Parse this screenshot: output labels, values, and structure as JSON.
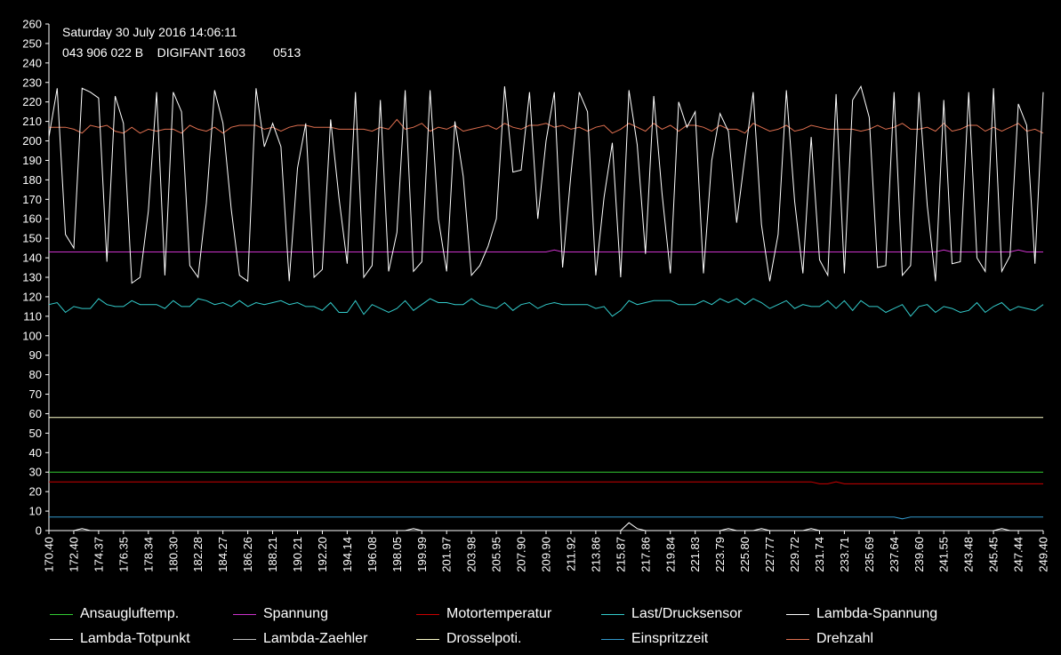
{
  "header": {
    "line1": "Saturday 30 July 2016 14:06:11",
    "line2": "043 906 022 B    DIGIFANT 1603        0513"
  },
  "chart_data": {
    "type": "line",
    "title": "",
    "ylim": [
      0,
      260
    ],
    "yticks": [
      0,
      10,
      20,
      30,
      40,
      50,
      60,
      70,
      80,
      90,
      100,
      110,
      120,
      130,
      140,
      150,
      160,
      170,
      180,
      190,
      200,
      210,
      220,
      230,
      240,
      250,
      260
    ],
    "xticks": [
      "170.40",
      "172.40",
      "174.37",
      "176.35",
      "178.34",
      "180.30",
      "182.28",
      "184.27",
      "186.26",
      "188.21",
      "190.21",
      "192.20",
      "194.14",
      "196.08",
      "198.05",
      "199.99",
      "201.97",
      "203.98",
      "205.95",
      "207.90",
      "209.90",
      "211.92",
      "213.86",
      "215.87",
      "217.86",
      "219.84",
      "221.83",
      "223.79",
      "225.80",
      "227.77",
      "229.72",
      "231.74",
      "233.71",
      "235.69",
      "237.64",
      "239.60",
      "241.55",
      "243.48",
      "245.45",
      "247.44",
      "249.40"
    ],
    "grid": false,
    "legend_position": "bottom",
    "n_points": 121,
    "series": [
      {
        "name": "Ansaugluftemp.",
        "color": "#33cc33",
        "constant": 30
      },
      {
        "name": "Spannung",
        "color": "#cc33cc",
        "constant": 143,
        "bumps": [
          [
            61,
            144
          ],
          [
            108,
            144
          ],
          [
            117,
            144
          ]
        ]
      },
      {
        "name": "Motortemperatur",
        "color": "#cc0000",
        "constant": 25,
        "from": [
          [
            92,
            25
          ],
          [
            93,
            24
          ],
          [
            94,
            24
          ],
          [
            95,
            25
          ],
          [
            96,
            24
          ]
        ],
        "after": 24,
        "after_index": 96
      },
      {
        "name": "Last/Drucksensor",
        "color": "#33cccc",
        "values": [
          116,
          117,
          112,
          115,
          114,
          114,
          119,
          116,
          115,
          115,
          118,
          116,
          116,
          116,
          114,
          118,
          115,
          115,
          119,
          118,
          116,
          117,
          115,
          118,
          115,
          117,
          116,
          117,
          118,
          116,
          117,
          115,
          115,
          113,
          117,
          112,
          112,
          118,
          111,
          116,
          114,
          112,
          114,
          118,
          113,
          116,
          119,
          117,
          117,
          116,
          116,
          119,
          116,
          115,
          114,
          117,
          113,
          116,
          117,
          114,
          116,
          117,
          116,
          116,
          116,
          116,
          114,
          115,
          110,
          113,
          118,
          116,
          117,
          118,
          118,
          118,
          116,
          116,
          116,
          118,
          116,
          119,
          117,
          119,
          116,
          119,
          117,
          114,
          116,
          118,
          114,
          116,
          115,
          115,
          118,
          114,
          118,
          113,
          118,
          115,
          115,
          112,
          114,
          116,
          110,
          115,
          116,
          112,
          115,
          114,
          112,
          113,
          117,
          112,
          115,
          117,
          113,
          115,
          114,
          113,
          116
        ]
      },
      {
        "name": "Lambda-Spannung",
        "color": "#ffffff",
        "values": [
          202,
          227,
          152,
          145,
          227,
          225,
          222,
          138,
          223,
          209,
          127,
          130,
          164,
          225,
          131,
          225,
          215,
          136,
          130,
          168,
          226,
          209,
          165,
          131,
          128,
          227,
          197,
          209,
          197,
          128,
          186,
          209,
          130,
          134,
          211,
          171,
          137,
          225,
          130,
          136,
          221,
          133,
          153,
          226,
          133,
          138,
          226,
          160,
          133,
          210,
          182,
          131,
          136,
          146,
          160,
          228,
          184,
          185,
          225,
          160,
          200,
          225,
          135,
          183,
          225,
          215,
          131,
          171,
          199,
          130,
          226,
          198,
          142,
          223,
          173,
          132,
          220,
          207,
          215,
          132,
          190,
          214,
          205,
          158,
          192,
          225,
          157,
          128,
          152,
          226,
          169,
          132,
          202,
          139,
          131,
          224,
          132,
          221,
          228,
          212,
          135,
          136,
          225,
          131,
          136,
          225,
          167,
          128,
          221,
          137,
          138,
          225,
          140,
          133,
          227,
          133,
          141,
          219,
          208,
          137,
          225
        ]
      },
      {
        "name": "Lambda-Totpunkt",
        "color": "#ffffff",
        "constant": 0,
        "bumps": [
          [
            4,
            1
          ],
          [
            44,
            1
          ],
          [
            70,
            4
          ],
          [
            71,
            1
          ],
          [
            82,
            1
          ],
          [
            86,
            1
          ],
          [
            92,
            1
          ],
          [
            115,
            1
          ]
        ]
      },
      {
        "name": "Lambda-Zaehler",
        "color": "#c0c0c0",
        "constant": 0
      },
      {
        "name": "Drosselpoti.",
        "color": "#ffffcc",
        "constant": 58
      },
      {
        "name": "Einspritzzeit",
        "color": "#3399cc",
        "constant": 7,
        "bumps": [
          [
            103,
            6
          ]
        ]
      },
      {
        "name": "Drehzahl",
        "color": "#e07050",
        "values": [
          207,
          207,
          207,
          206,
          204,
          208,
          207,
          208,
          205,
          204,
          207,
          204,
          206,
          205,
          206,
          206,
          204,
          208,
          206,
          205,
          207,
          204,
          207,
          208,
          208,
          208,
          206,
          207,
          205,
          207,
          208,
          208,
          207,
          207,
          207,
          206,
          206,
          206,
          206,
          205,
          207,
          206,
          211,
          206,
          207,
          209,
          205,
          207,
          206,
          208,
          205,
          206,
          207,
          208,
          206,
          209,
          207,
          206,
          208,
          208,
          209,
          207,
          208,
          206,
          207,
          205,
          207,
          208,
          204,
          206,
          209,
          207,
          205,
          209,
          206,
          208,
          205,
          208,
          208,
          207,
          205,
          208,
          206,
          206,
          204,
          209,
          207,
          205,
          206,
          208,
          205,
          206,
          208,
          207,
          206,
          206,
          206,
          206,
          205,
          206,
          208,
          206,
          207,
          209,
          206,
          206,
          207,
          205,
          209,
          205,
          206,
          208,
          208,
          205,
          207,
          205,
          207,
          209,
          205,
          206,
          204
        ]
      }
    ]
  },
  "legend": {
    "row1": [
      "Ansaugluftemp.",
      "Spannung",
      "Motortemperatur",
      "Last/Drucksensor",
      "Lambda-Spannung"
    ],
    "row2": [
      "Lambda-Totpunkt",
      "Lambda-Zaehler",
      "Drosselpoti.",
      "Einspritzzeit",
      "Drehzahl"
    ],
    "colors_row1": [
      "#33cc33",
      "#cc33cc",
      "#cc0000",
      "#33cccc",
      "#ffffff"
    ],
    "colors_row2": [
      "#ffffff",
      "#c0c0c0",
      "#ffffcc",
      "#3399cc",
      "#e07050"
    ]
  }
}
